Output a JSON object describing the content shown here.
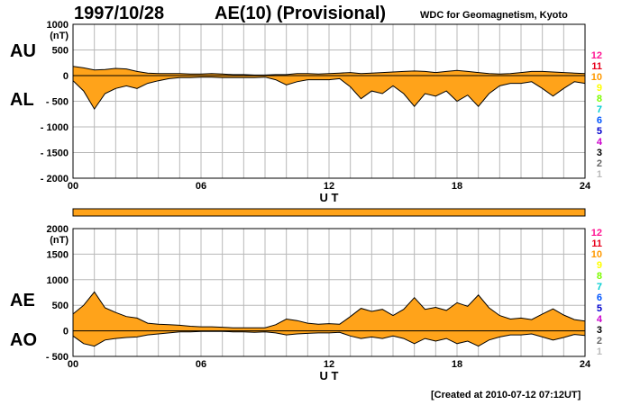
{
  "header": {
    "date": "1997/10/28",
    "title": "AE(10) (Provisional)",
    "source": "WDC for Geomagnetism, Kyoto"
  },
  "footer": {
    "created": "[Created at 2010-07-12 07:12UT]"
  },
  "colors": {
    "fill": "#ffa31a",
    "line": "#000000",
    "grid": "#b8b8b8"
  },
  "chart_data": [
    {
      "type": "area",
      "series": [
        {
          "name": "AU"
        },
        {
          "name": "AL"
        }
      ],
      "ylabel": "(nT)",
      "xlabel": "U T",
      "ylim": [
        -2000,
        1000
      ],
      "xlim": [
        0,
        24
      ],
      "xticks": [
        "00",
        "06",
        "12",
        "18",
        "24"
      ],
      "yticks": [
        "1000",
        "500",
        "0",
        "- 500",
        "- 1000",
        "- 1500",
        "- 2000"
      ],
      "grid": true,
      "x": [
        0,
        0.5,
        1,
        1.5,
        2,
        2.5,
        3,
        3.5,
        4,
        4.5,
        5,
        5.5,
        6,
        6.5,
        7,
        7.5,
        8,
        8.5,
        9,
        9.5,
        10,
        10.5,
        11,
        11.5,
        12,
        12.5,
        13,
        13.5,
        14,
        14.5,
        15,
        15.5,
        16,
        16.5,
        17,
        17.5,
        18,
        18.5,
        19,
        19.5,
        20,
        20.5,
        21,
        21.5,
        22,
        22.5,
        23,
        23.5,
        24
      ],
      "upper": [
        180,
        150,
        110,
        120,
        140,
        130,
        80,
        50,
        40,
        40,
        40,
        30,
        30,
        40,
        30,
        20,
        20,
        10,
        10,
        20,
        20,
        40,
        40,
        30,
        40,
        50,
        60,
        40,
        50,
        60,
        70,
        80,
        90,
        80,
        60,
        80,
        100,
        80,
        60,
        40,
        30,
        40,
        60,
        80,
        80,
        70,
        60,
        50,
        40
      ],
      "lower": [
        -100,
        -300,
        -650,
        -350,
        -250,
        -200,
        -250,
        -150,
        -100,
        -60,
        -40,
        -40,
        -30,
        -30,
        -40,
        -40,
        -40,
        -40,
        -30,
        -80,
        -180,
        -120,
        -80,
        -80,
        -80,
        -60,
        -220,
        -450,
        -300,
        -350,
        -200,
        -350,
        -600,
        -350,
        -400,
        -300,
        -500,
        -380,
        -600,
        -350,
        -200,
        -150,
        -150,
        -120,
        -250,
        -400,
        -250,
        -120,
        -150
      ]
    },
    {
      "type": "area",
      "series": [
        {
          "name": "AE"
        },
        {
          "name": "AO"
        }
      ],
      "ylabel": "(nT)",
      "xlabel": "U T",
      "ylim": [
        -500,
        2000
      ],
      "xlim": [
        0,
        24
      ],
      "xticks": [
        "00",
        "06",
        "12",
        "18",
        "24"
      ],
      "yticks": [
        "2000",
        "1500",
        "1000",
        "500",
        "0",
        "- 500"
      ],
      "grid": true,
      "x": [
        0,
        0.5,
        1,
        1.5,
        2,
        2.5,
        3,
        3.5,
        4,
        4.5,
        5,
        5.5,
        6,
        6.5,
        7,
        7.5,
        8,
        8.5,
        9,
        9.5,
        10,
        10.5,
        11,
        11.5,
        12,
        12.5,
        13,
        13.5,
        14,
        14.5,
        15,
        15.5,
        16,
        16.5,
        17,
        17.5,
        18,
        18.5,
        19,
        19.5,
        20,
        20.5,
        21,
        21.5,
        22,
        22.5,
        23,
        23.5,
        24
      ],
      "upper": [
        330,
        500,
        760,
        450,
        360,
        280,
        250,
        150,
        130,
        120,
        110,
        90,
        80,
        80,
        70,
        60,
        60,
        60,
        60,
        120,
        230,
        200,
        150,
        130,
        140,
        130,
        280,
        440,
        380,
        420,
        300,
        420,
        650,
        420,
        460,
        400,
        550,
        480,
        700,
        450,
        300,
        230,
        250,
        220,
        330,
        430,
        310,
        220,
        190
      ],
      "lower": [
        -100,
        -250,
        -300,
        -180,
        -150,
        -130,
        -120,
        -80,
        -60,
        -40,
        -20,
        -20,
        -10,
        -10,
        -10,
        -20,
        -20,
        -30,
        -20,
        -40,
        -80,
        -60,
        -50,
        -40,
        -40,
        -30,
        -100,
        -150,
        -120,
        -150,
        -100,
        -150,
        -250,
        -150,
        -200,
        -150,
        -250,
        -200,
        -300,
        -180,
        -120,
        -80,
        -80,
        -60,
        -120,
        -180,
        -130,
        -70,
        -90
      ]
    }
  ],
  "left_labels": {
    "top_upper": "AU",
    "top_lower": "AL",
    "bottom_upper": "AE",
    "bottom_lower": "AO"
  },
  "stations": [
    {
      "label": "12",
      "color": "#ff1493"
    },
    {
      "label": "11",
      "color": "#e8001c"
    },
    {
      "label": "10",
      "color": "#ff9900"
    },
    {
      "label": "9",
      "color": "#ffff00"
    },
    {
      "label": "8",
      "color": "#7cfc00"
    },
    {
      "label": "7",
      "color": "#00ced1"
    },
    {
      "label": "6",
      "color": "#0055ff"
    },
    {
      "label": "5",
      "color": "#0000cc"
    },
    {
      "label": "4",
      "color": "#cc00cc"
    },
    {
      "label": "3",
      "color": "#000000"
    },
    {
      "label": "2",
      "color": "#666666"
    },
    {
      "label": "1",
      "color": "#bbbbbb"
    }
  ]
}
